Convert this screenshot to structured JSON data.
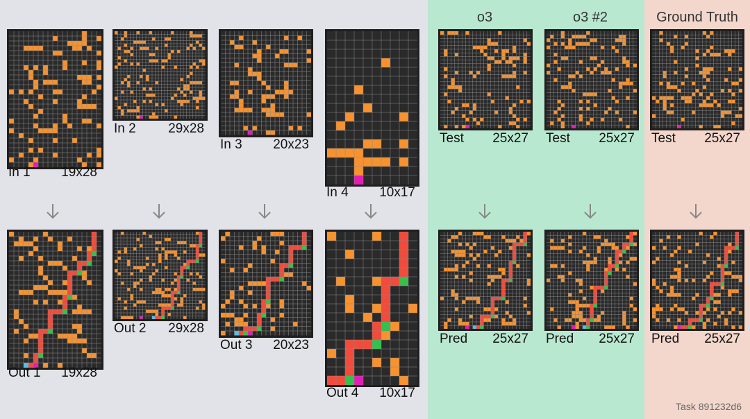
{
  "headers": {
    "o3": "o3",
    "o3_2": "o3 #2",
    "ground_truth": "Ground Truth"
  },
  "task": "Task 891232d6",
  "colors": {
    "background_examples": "#e2e3e9",
    "background_o3": "#b9e8d0",
    "background_gt": "#f3d7cc",
    "cell_empty": "#2a2a2a",
    "grid_line": "#8a8a8a",
    "orange": "#f7922e",
    "magenta": "#e31cb6",
    "red": "#f24b3b",
    "cyan": "#54c0e8",
    "green": "#34c04d",
    "yellow": "#f9e03a",
    "arrow": "#888888"
  },
  "grids": [
    {
      "id": "in1",
      "name": "In 1",
      "size": "19x28",
      "cols": 19,
      "rows": 28
    },
    {
      "id": "in2",
      "name": "In 2",
      "size": "29x28",
      "cols": 29,
      "rows": 28
    },
    {
      "id": "in3",
      "name": "In 3",
      "size": "20x23",
      "cols": 20,
      "rows": 23
    },
    {
      "id": "in4",
      "name": "In 4",
      "size": "10x17",
      "cols": 10,
      "rows": 17
    },
    {
      "id": "o3test",
      "name": "Test",
      "size": "25x27",
      "cols": 25,
      "rows": 27
    },
    {
      "id": "o3btest",
      "name": "Test",
      "size": "25x27",
      "cols": 25,
      "rows": 27
    },
    {
      "id": "gttest",
      "name": "Test",
      "size": "25x27",
      "cols": 25,
      "rows": 27
    },
    {
      "id": "out1",
      "name": "Out 1",
      "size": "19x28",
      "cols": 19,
      "rows": 28
    },
    {
      "id": "out2",
      "name": "Out 2",
      "size": "29x28",
      "cols": 29,
      "rows": 28
    },
    {
      "id": "out3",
      "name": "Out 3",
      "size": "20x23",
      "cols": 20,
      "rows": 23
    },
    {
      "id": "out4",
      "name": "Out 4",
      "size": "10x17",
      "cols": 10,
      "rows": 17
    },
    {
      "id": "o3pred",
      "name": "Pred",
      "size": "25x27",
      "cols": 25,
      "rows": 27
    },
    {
      "id": "o3bpred",
      "name": "Pred",
      "size": "25x27",
      "cols": 25,
      "rows": 27
    },
    {
      "id": "gtpred",
      "name": "Pred",
      "size": "25x27",
      "cols": 25,
      "rows": 27
    }
  ]
}
